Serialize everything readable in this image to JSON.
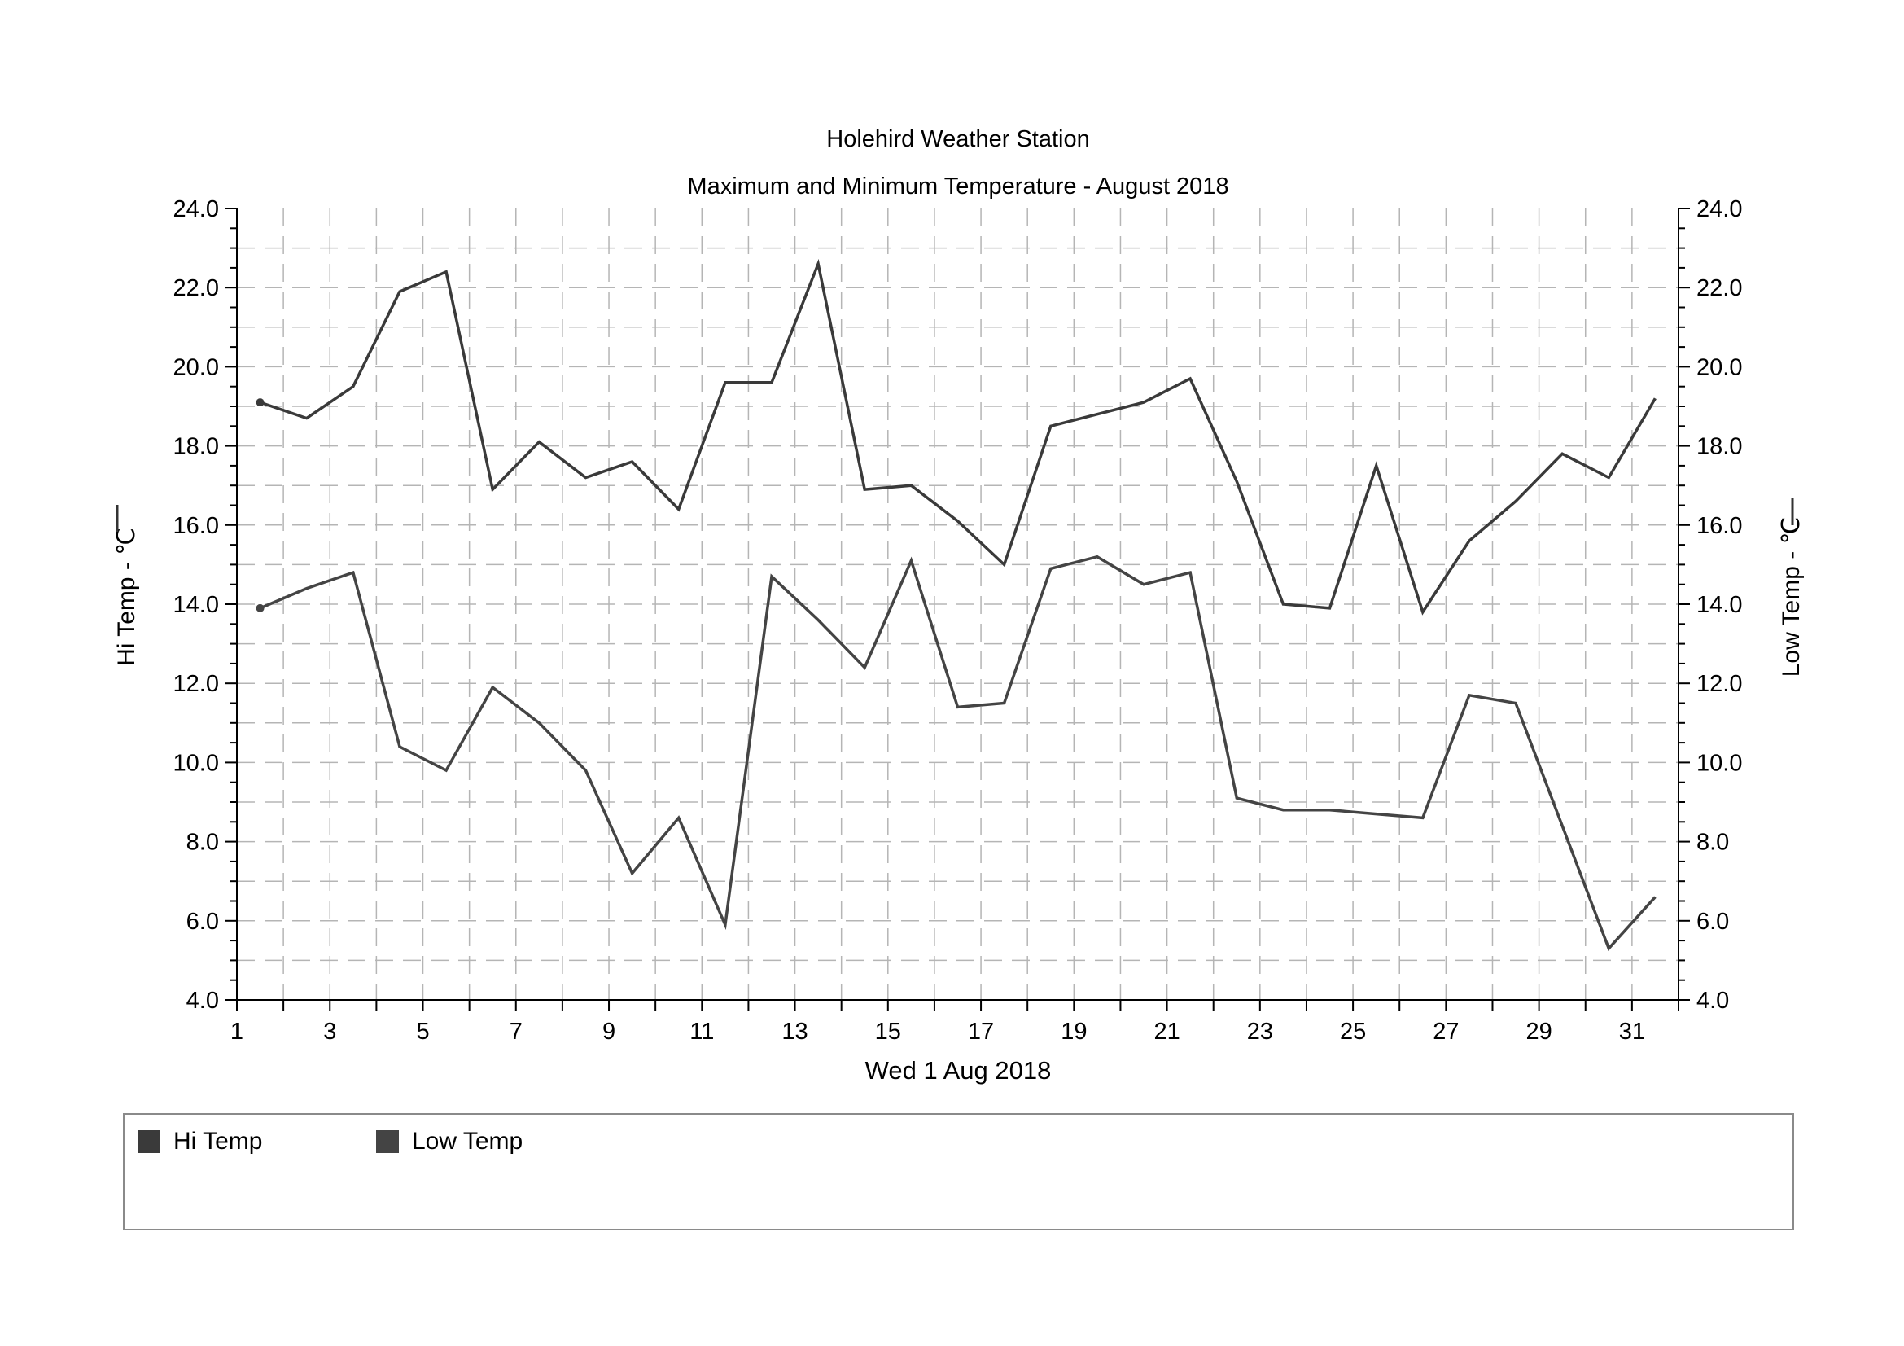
{
  "chart_data": {
    "type": "line",
    "title": "Holehird Weather Station",
    "subtitle": "Maximum and Minimum Temperature - August 2018",
    "xlabel": "Wed 1 Aug 2018",
    "ylabel_left": "Hi Temp - ℃",
    "ylabel_right": "Low Temp - ℃",
    "xlim": [
      1,
      32
    ],
    "ylim": [
      4.0,
      24.0
    ],
    "x_tick_labels": [
      "1",
      "3",
      "5",
      "7",
      "9",
      "11",
      "13",
      "15",
      "17",
      "19",
      "21",
      "23",
      "25",
      "27",
      "29",
      "31"
    ],
    "y_tick_labels": [
      "4.0",
      "6.0",
      "8.0",
      "10.0",
      "12.0",
      "14.0",
      "16.0",
      "18.0",
      "20.0",
      "22.0",
      "24.0"
    ],
    "grid": true,
    "legend_position": "bottom",
    "x": [
      1.5,
      2.5,
      3.5,
      4.5,
      5.5,
      6.5,
      7.5,
      8.5,
      9.5,
      10.5,
      11.5,
      12.5,
      13.5,
      14.5,
      15.5,
      16.5,
      17.5,
      18.5,
      19.5,
      20.5,
      21.5,
      22.5,
      23.5,
      24.5,
      25.5,
      26.5,
      27.5,
      28.5,
      29.5,
      30.5,
      31.5
    ],
    "series": [
      {
        "name": "Hi Temp",
        "color": "#3a3a3a",
        "values": [
          19.1,
          18.7,
          19.5,
          21.9,
          22.4,
          16.9,
          18.1,
          17.2,
          17.6,
          16.4,
          19.6,
          19.6,
          22.6,
          16.9,
          17.0,
          16.1,
          15.0,
          18.5,
          18.8,
          19.1,
          19.7,
          17.1,
          14.0,
          13.9,
          17.5,
          13.8,
          15.6,
          16.6,
          17.8,
          17.2,
          19.2
        ]
      },
      {
        "name": "Low Temp",
        "color": "#444444",
        "values": [
          13.9,
          14.4,
          14.8,
          10.4,
          9.8,
          11.9,
          11.0,
          9.8,
          7.2,
          8.6,
          5.9,
          14.7,
          13.6,
          12.4,
          15.1,
          11.4,
          11.5,
          14.9,
          15.2,
          14.5,
          14.8,
          9.1,
          8.8,
          8.8,
          8.7,
          8.6,
          11.7,
          11.5,
          8.4,
          5.3,
          6.6
        ]
      }
    ]
  }
}
